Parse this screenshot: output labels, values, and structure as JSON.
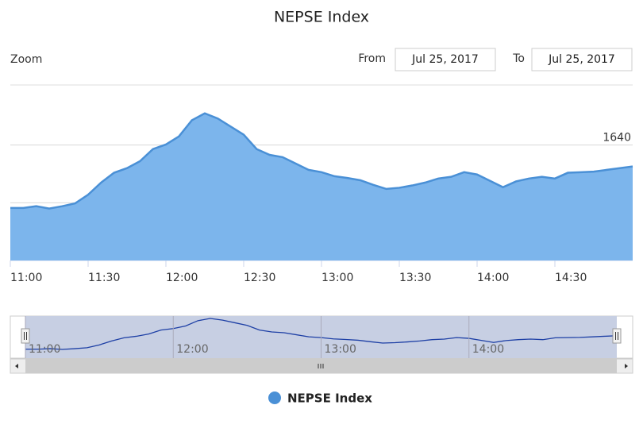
{
  "chart_data": {
    "type": "area",
    "title": "NEPSE Index",
    "range_selector": {
      "zoom_label": "Zoom",
      "from_label": "From",
      "to_label": "To",
      "from_date": "Jul 25, 2017",
      "to_date": "Jul 25, 2017"
    },
    "x": [
      "11:00",
      "11:05",
      "11:10",
      "11:15",
      "11:20",
      "11:25",
      "11:30",
      "11:35",
      "11:40",
      "11:45",
      "11:50",
      "11:55",
      "12:00",
      "12:05",
      "12:10",
      "12:15",
      "12:20",
      "12:25",
      "12:30",
      "12:35",
      "12:40",
      "12:45",
      "12:50",
      "12:55",
      "13:00",
      "13:05",
      "13:10",
      "13:15",
      "13:20",
      "13:25",
      "13:30",
      "13:35",
      "13:40",
      "13:45",
      "13:50",
      "13:55",
      "14:00",
      "14:05",
      "14:10",
      "14:15",
      "14:20",
      "14:25",
      "14:30",
      "14:35",
      "14:40",
      "14:45",
      "14:50",
      "14:55",
      "15:00"
    ],
    "series": [
      {
        "name": "NEPSE Index",
        "color": "#4a90d6",
        "fill": "#7cb5ec",
        "values": [
          1629.1,
          1629.1,
          1629.4,
          1629.0,
          1629.4,
          1629.9,
          1631.4,
          1633.5,
          1635.2,
          1636.0,
          1637.2,
          1639.3,
          1640.1,
          1641.5,
          1644.3,
          1645.5,
          1644.6,
          1643.2,
          1641.8,
          1639.3,
          1638.3,
          1637.9,
          1636.8,
          1635.7,
          1635.3,
          1634.6,
          1634.3,
          1633.9,
          1633.1,
          1632.4,
          1632.6,
          1633.0,
          1633.5,
          1634.2,
          1634.5,
          1635.3,
          1634.9,
          1633.8,
          1632.7,
          1633.7,
          1634.2,
          1634.5,
          1634.2,
          1635.2,
          1635.3,
          1635.4,
          1635.7,
          1636.0,
          1636.3
        ]
      }
    ],
    "xlim": [
      "11:00",
      "15:00"
    ],
    "xticks": [
      "11:00",
      "11:30",
      "12:00",
      "12:30",
      "13:00",
      "13:30",
      "14:00",
      "14:30"
    ],
    "ylim": [
      1620,
      1650
    ],
    "yticks": [
      1620,
      1630,
      1640
    ],
    "grid": true,
    "navigator": {
      "color": "#1d3fa5"
    }
  }
}
